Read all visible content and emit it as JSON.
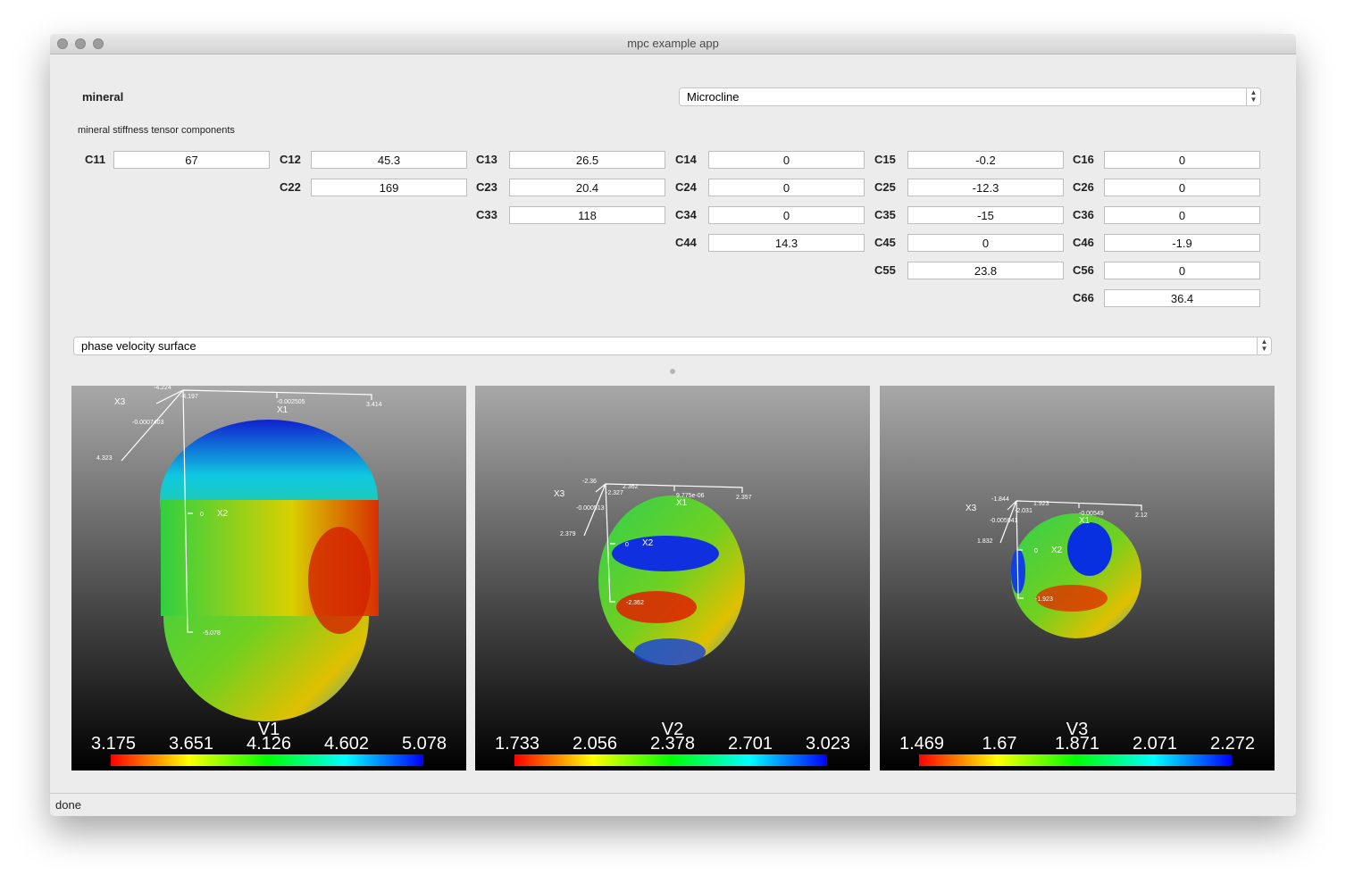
{
  "window": {
    "title": "mpc example app"
  },
  "mineral": {
    "label": "mineral",
    "selected": "Microcline"
  },
  "tensor": {
    "title": "mineral stiffness tensor components",
    "rows": [
      [
        {
          "label": "C11",
          "value": "67"
        },
        {
          "label": "C12",
          "value": "45.3"
        },
        {
          "label": "C13",
          "value": "26.5"
        },
        {
          "label": "C14",
          "value": "0"
        },
        {
          "label": "C15",
          "value": "-0.2"
        },
        {
          "label": "C16",
          "value": "0"
        }
      ],
      [
        {
          "label": "C22",
          "value": "169"
        },
        {
          "label": "C23",
          "value": "20.4"
        },
        {
          "label": "C24",
          "value": "0"
        },
        {
          "label": "C25",
          "value": "-12.3"
        },
        {
          "label": "C26",
          "value": "0"
        }
      ],
      [
        {
          "label": "C33",
          "value": "118"
        },
        {
          "label": "C34",
          "value": "0"
        },
        {
          "label": "C35",
          "value": "-15"
        },
        {
          "label": "C36",
          "value": "0"
        }
      ],
      [
        {
          "label": "C44",
          "value": "14.3"
        },
        {
          "label": "C45",
          "value": "0"
        },
        {
          "label": "C46",
          "value": "-1.9"
        }
      ],
      [
        {
          "label": "C55",
          "value": "23.8"
        },
        {
          "label": "C56",
          "value": "0"
        }
      ],
      [
        {
          "label": "C66",
          "value": "36.4"
        }
      ]
    ]
  },
  "plot": {
    "selected": "phase velocity surface"
  },
  "viewports": [
    {
      "colorbar_title": "V1",
      "colorbar_labels": [
        "3.175",
        "3.651",
        "4.126",
        "4.602",
        "5.078"
      ],
      "annotations": [
        "X3",
        "-4.224",
        "-4.197",
        "-0.0007403",
        "4.323",
        "-0.002505",
        "X1",
        "3.414",
        "0",
        "X2",
        "-5.078"
      ]
    },
    {
      "colorbar_title": "V2",
      "colorbar_labels": [
        "1.733",
        "2.056",
        "2.378",
        "2.701",
        "3.023"
      ],
      "annotations": [
        "X3",
        "-2.36",
        "-2.327",
        "2.362",
        "-0.000513",
        "2.379",
        "9.775e-06",
        "X1",
        "2.357",
        "0",
        "X2",
        "-2.362"
      ]
    },
    {
      "colorbar_title": "V3",
      "colorbar_labels": [
        "1.469",
        "1.67",
        "1.871",
        "2.071",
        "2.272"
      ],
      "annotations": [
        "X3",
        "-1.844",
        "-2.031",
        "1.923",
        "-0.005941",
        "1.832",
        "-0.00549",
        "X1",
        "2.12",
        "0",
        "X2",
        "-1.923"
      ]
    }
  ],
  "status": "done"
}
